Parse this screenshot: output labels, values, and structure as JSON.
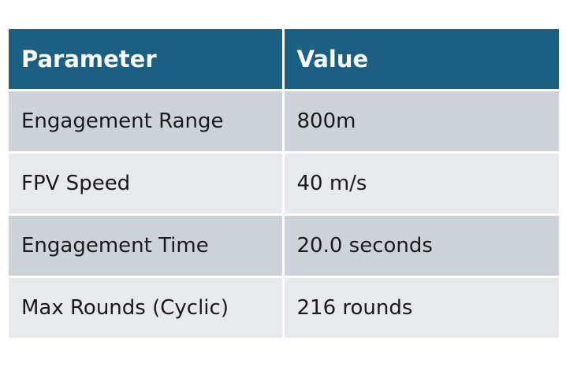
{
  "table": {
    "headers": [
      "Parameter",
      "Value"
    ],
    "rows": [
      [
        "Engagement Range",
        "800m"
      ],
      [
        "FPV Speed",
        "40 m/s"
      ],
      [
        "Engagement Time",
        "20.0 seconds"
      ],
      [
        "Max Rounds (Cyclic)",
        "216 rounds"
      ]
    ]
  },
  "colors": {
    "header_bg": "#1b5f82",
    "header_text": "#ffffff",
    "row_odd_bg": "#ced3da",
    "row_even_bg": "#e7e9ec"
  }
}
